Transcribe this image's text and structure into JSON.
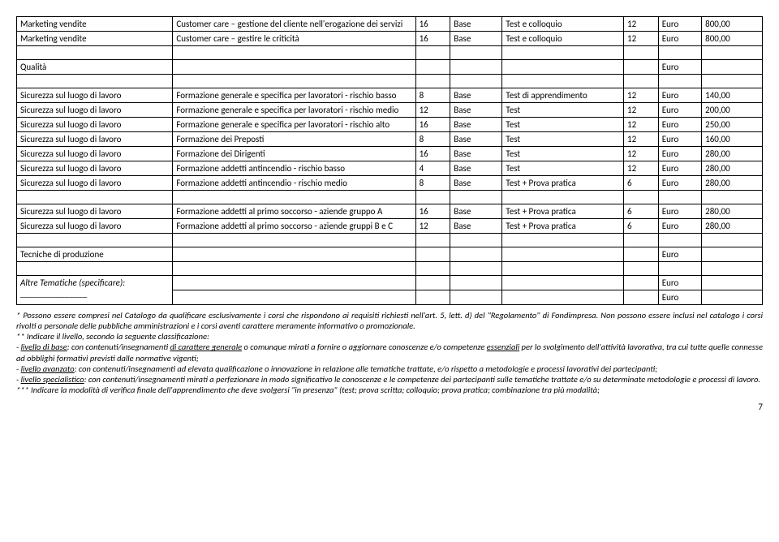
{
  "rows": [
    {
      "a": "Marketing vendite",
      "b": "Customer care – gestione del cliente nell'erogazione dei servizi",
      "c": "16",
      "d": "Base",
      "e": "Test e colloquio",
      "f": "12",
      "g": "Euro",
      "h": "800,00"
    },
    {
      "a": "Marketing vendite",
      "b": "Customer care – gestire le criticità",
      "c": "16",
      "d": "Base",
      "e": "Test e colloquio",
      "f": "12",
      "g": "Euro",
      "h": "800,00"
    }
  ],
  "qualita": {
    "a": "Qualità",
    "g": "Euro"
  },
  "sicurezza": [
    {
      "a": "Sicurezza sul luogo di lavoro",
      "b": "Formazione generale e specifica per lavoratori - rischio basso",
      "c": "8",
      "d": "Base",
      "e": "Test di apprendimento",
      "f": "12",
      "g": "Euro",
      "h": "140,00"
    },
    {
      "a": "Sicurezza sul luogo di lavoro",
      "b": "Formazione generale e specifica per lavoratori - rischio medio",
      "c": "12",
      "d": "Base",
      "e": "Test",
      "f": "12",
      "g": "Euro",
      "h": "200,00"
    },
    {
      "a": "Sicurezza sul luogo di lavoro",
      "b": "Formazione generale e specifica per lavoratori - rischio alto",
      "c": "16",
      "d": "Base",
      "e": "Test",
      "f": "12",
      "g": "Euro",
      "h": "250,00"
    },
    {
      "a": "Sicurezza sul luogo di lavoro",
      "b": "Formazione dei Preposti",
      "c": "8",
      "d": "Base",
      "e": "Test",
      "f": "12",
      "g": "Euro",
      "h": "160,00"
    },
    {
      "a": "Sicurezza sul luogo di lavoro",
      "b": "Formazione dei Dirigenti",
      "c": "16",
      "d": "Base",
      "e": "Test",
      "f": "12",
      "g": "Euro",
      "h": "280,00"
    },
    {
      "a": "Sicurezza sul luogo di lavoro",
      "b": "Formazione addetti antincendio - rischio basso",
      "c": "4",
      "d": "Base",
      "e": "Test",
      "f": "12",
      "g": "Euro",
      "h": "280,00"
    },
    {
      "a": "Sicurezza sul luogo di lavoro",
      "b": "Formazione addetti antincendio - rischio medio",
      "c": "8",
      "d": "Base",
      "e": "Test + Prova pratica",
      "f": "6",
      "g": "Euro",
      "h": "280,00"
    }
  ],
  "soccorso": [
    {
      "a": "Sicurezza sul luogo di lavoro",
      "b": "Formazione addetti al primo soccorso - aziende gruppo A",
      "c": "16",
      "d": "Base",
      "e": "Test + Prova pratica",
      "f": "6",
      "g": "Euro",
      "h": "280,00"
    },
    {
      "a": "Sicurezza sul luogo di lavoro",
      "b": "Formazione addetti al primo soccorso - aziende gruppi B e C",
      "c": "12",
      "d": "Base",
      "e": "Test + Prova pratica",
      "f": "6",
      "g": "Euro",
      "h": "280,00"
    }
  ],
  "tecniche": {
    "a": "Tecniche di produzione",
    "g": "Euro"
  },
  "altre": {
    "label": "Altre Tematiche (specificare):",
    "blank": "_______________",
    "g1": "Euro",
    "g2": "Euro"
  },
  "notes": {
    "p1": "* Possono essere compresi nel Catalogo da qualificare esclusivamente i corsi che rispondono ai requisiti richiesti nell'art. 5, lett. d) del \"Regolamento\" di Fondimpresa. Non possono essere inclusi nel catalogo i corsi rivolti a personale delle pubbliche amministrazioni e i corsi aventi carattere meramente informativo o promozionale.",
    "p2": "** Indicare il livello, secondo la seguente classificazione:",
    "p3a": "- ",
    "p3u": "livello di base",
    "p3b": ": con contenuti/insegnamenti ",
    "p3u2": "di carattere generale",
    "p3c": " o comunque mirati a fornire o aggiornare conoscenze e/o competenze ",
    "p3u3": "essenziali",
    "p3d": " per lo svolgimento dell'attività lavorativa, tra cui tutte quelle connesse ad obblighi formativi previsti dalle normative vigenti;",
    "p4a": "- ",
    "p4u": "livello avanzato",
    "p4b": ": con contenuti/insegnamenti ad elevata qualificazione o innovazione in relazione alle tematiche trattate, e/o rispetto a metodologie e processi lavorativi dei partecipanti;",
    "p5a": "- ",
    "p5u": "livello specialistico",
    "p5b": ": con contenuti/insegnamenti mirati a perfezionare in modo significativo le conoscenze e le competenze dei partecipanti sulle tematiche trattate e/o su determinate metodologie e processi di lavoro.",
    "p6": "*** Indicare la modalità di verifica finale dell'apprendimento che deve svolgersi \"in presenza\" (test; prova scritta; colloquio; prova pratica; combinazione tra più modalità;"
  },
  "pagenum": "7"
}
